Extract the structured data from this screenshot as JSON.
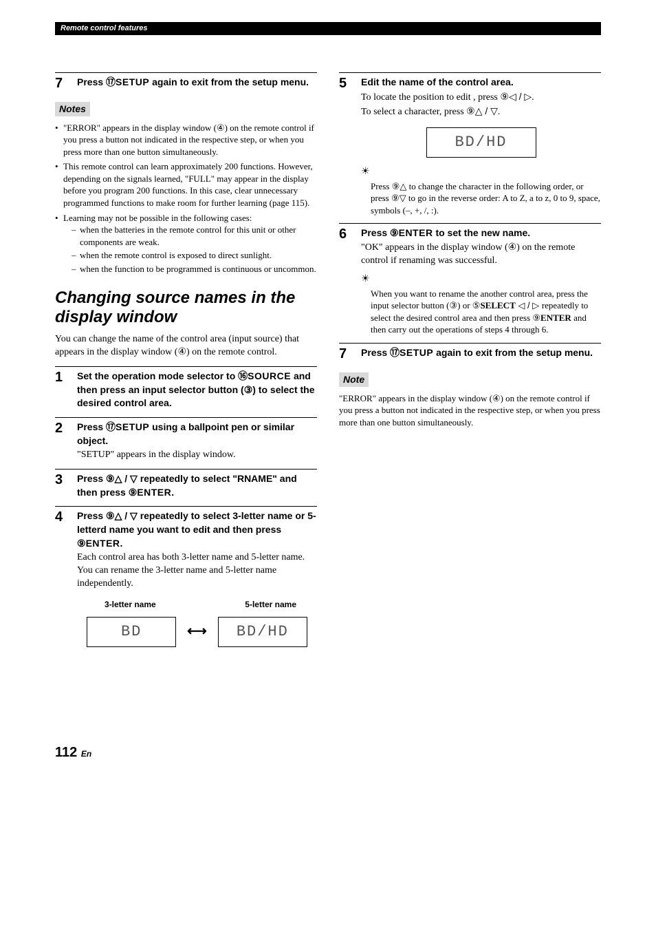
{
  "header": {
    "section": "Remote control features"
  },
  "pageNumber": "112",
  "pageLang": "En",
  "left": {
    "step7": {
      "title_pre": "Press ",
      "title_circ": "⑰",
      "title_key": "SETUP",
      "title_post": " again to exit from the setup menu."
    },
    "notesLabel": "Notes",
    "note1": "\"ERROR\" appears in the display window (④) on the remote control if you press a button not indicated in the respective step, or when you press more than one button simultaneously.",
    "note2": "This remote control can learn approximately 200 functions. However, depending on the signals learned, \"FULL\" may appear in the display before you program 200 functions. In this case, clear unnecessary programmed functions to make room for further learning (page 115).",
    "note3": "Learning may not be possible in the following cases:",
    "note3a": "when the batteries in the remote control for this unit or other components are weak.",
    "note3b": "when the remote control is exposed to direct sunlight.",
    "note3c": "when the function to be programmed is continuous or uncommon.",
    "sectionTitle": "Changing source names in the display window",
    "intro": "You can change the name of the control area (input source) that appears in the display window (④) on the remote control.",
    "step1": {
      "pre": "Set the operation mode selector to ",
      "circ": "⑯",
      "key": "SOURCE",
      "mid": " and then press an input selector button (",
      "circ2": "③",
      "post": ") to select the desired control area."
    },
    "step2": {
      "pre": "Press ",
      "circ": "⑰",
      "key": "SETUP",
      "post": " using a ballpoint pen or similar object.",
      "desc": "\"SETUP\" appears in the display window."
    },
    "step3": {
      "pre": "Press ",
      "circ": "⑨",
      "arrows": "△ / ▽",
      "mid": " repeatedly to select \"RNAME\" and then press ",
      "circ2": "⑨",
      "key": "ENTER",
      "post": "."
    },
    "step4": {
      "pre": "Press ",
      "circ": "⑨",
      "arrows": "△ / ▽",
      "mid": " repeatedly to select 3-letter name or 5-letterd name you want to edit and then press ",
      "circ2": "⑨",
      "key": "ENTER",
      "post": ".",
      "desc": "Each control area has both 3-letter name and 5-letter name. You can rename the 3-letter name and 5-letter name independently."
    },
    "nameLabels": {
      "three": "3-letter name",
      "five": "5-letter name"
    },
    "seg3": "BD",
    "seg5": "BD/HD"
  },
  "right": {
    "step5": {
      "title": "Edit the name of the control area.",
      "desc1_pre": "To locate the position to edit , press ",
      "desc1_circ": "⑨",
      "desc1_arrows": "◁ / ▷",
      "desc1_post": ".",
      "desc2_pre": "To select a character, press ",
      "desc2_circ": "⑨",
      "desc2_arrows": "△ / ▽",
      "desc2_post": ".",
      "seg": "BD/HD",
      "tip_pre": "Press ",
      "tip_circ": "⑨",
      "tip_arr1": "△",
      "tip_mid1": " to change the character in the following order, or press ",
      "tip_circ2": "⑨",
      "tip_arr2": "▽",
      "tip_mid2": " to go in the reverse order: A to Z, a to z, 0 to 9, space, symbols (–, +, /, :)."
    },
    "step6": {
      "pre": "Press ",
      "circ": "⑨",
      "key": "ENTER",
      "post": " to set the new name.",
      "desc": "\"OK\" appears in the display window (④) on the remote control if renaming was successful.",
      "tip_pre": "When you want to rename the another control area, press the input selector button (",
      "tip_circ1": "③",
      "tip_mid1": ") or ",
      "tip_circ2": "⑤",
      "tip_key": "SELECT",
      "tip_arrows": " ◁ / ▷ ",
      "tip_mid2": "repeatedly to select the desired control area and then press ",
      "tip_circ3": "⑨",
      "tip_key2": "ENTER",
      "tip_post": " and then carry out the operations of steps 4 through 6."
    },
    "step7": {
      "pre": "Press ",
      "circ": "⑰",
      "key": "SETUP",
      "post": " again to exit from the setup menu."
    },
    "noteLabel": "Note",
    "noteText": "\"ERROR\" appears in the display window (④) on the remote control if you press a button not indicated in the respective step, or when you press more than one button simultaneously."
  }
}
